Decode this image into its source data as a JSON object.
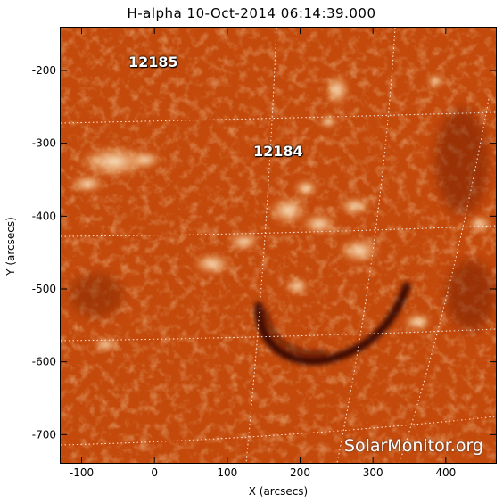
{
  "title": "H-alpha 10-Oct-2014 06:14:39.000",
  "x_axis": {
    "label": "X (arcsecs)",
    "ticks": [
      "-100",
      "0",
      "100",
      "200",
      "300",
      "400"
    ],
    "range": [
      -130,
      470
    ]
  },
  "y_axis": {
    "label": "Y (arcsecs)",
    "ticks": [
      "-200",
      "-300",
      "-400",
      "-500",
      "-600",
      "-700"
    ],
    "range": [
      -740,
      -140
    ]
  },
  "regions": [
    {
      "id": "12185",
      "label": "12185"
    },
    {
      "id": "12184",
      "label": "12184"
    }
  ],
  "watermark": "SolarMonitor.org",
  "colors": {
    "background": "#c44a0c",
    "bright": "#ffe6b0",
    "dark": "#3a0a00",
    "grid": "#ffffff"
  }
}
